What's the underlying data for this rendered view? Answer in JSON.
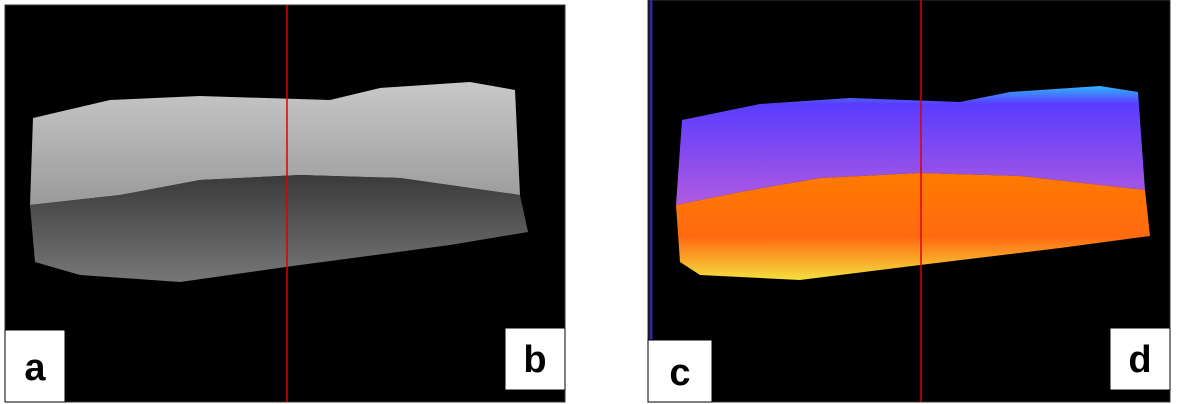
{
  "panels": [
    {
      "labels": [
        "a",
        "b"
      ]
    },
    {
      "labels": [
        "c",
        "d"
      ]
    }
  ]
}
